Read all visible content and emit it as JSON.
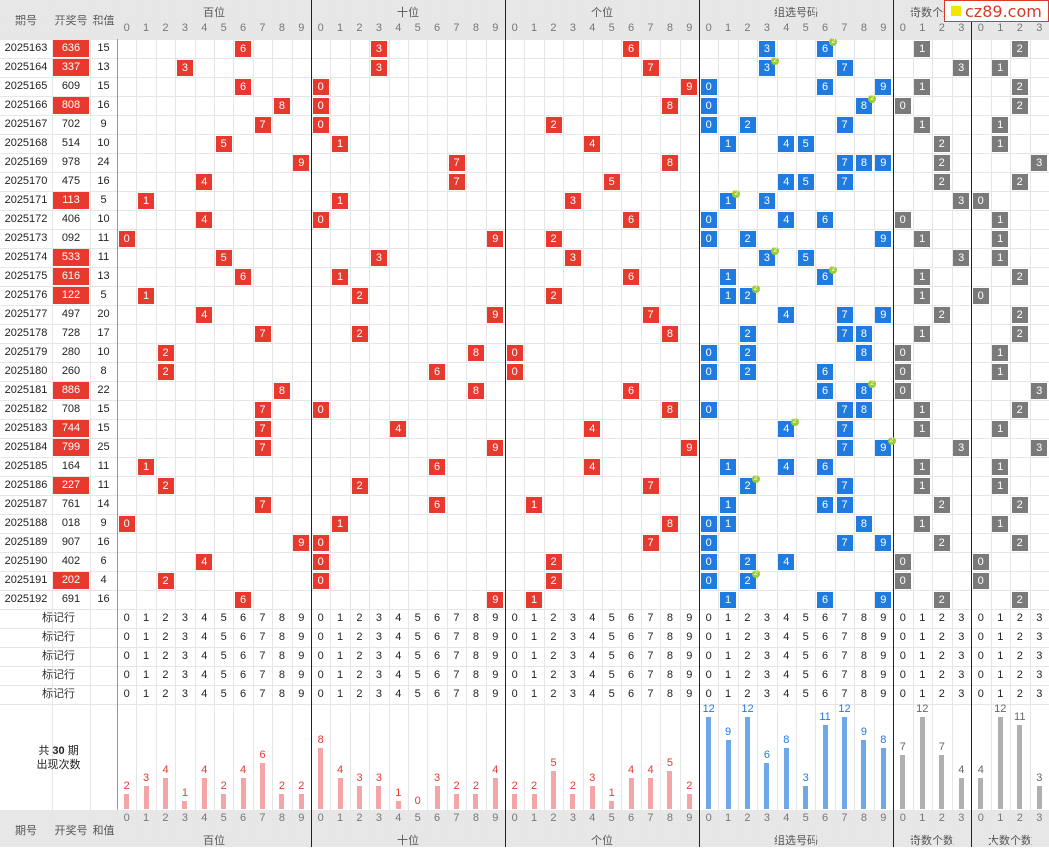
{
  "header": {
    "issue": "期号",
    "number": "开奖号",
    "sum": "和值",
    "groups": [
      "百位",
      "十位",
      "个位",
      "组选号码",
      "奇数个数",
      "大数个数"
    ],
    "logo": "cz89.com"
  },
  "rows": [
    {
      "issue": "2025163",
      "number": "636",
      "sum": "15",
      "tag": "red",
      "g3": [
        3,
        6
      ],
      "g3rep": 6,
      "odd": 1,
      "big": 2
    },
    {
      "issue": "2025164",
      "number": "337",
      "sum": "13",
      "tag": "red",
      "g3": [
        3,
        7
      ],
      "g3rep": 3,
      "odd": 3,
      "big": 1
    },
    {
      "issue": "2025165",
      "number": "609",
      "sum": "15",
      "tag": "",
      "g3": [
        0,
        6,
        9
      ],
      "g3rep": null,
      "odd": 1,
      "big": 2
    },
    {
      "issue": "2025166",
      "number": "808",
      "sum": "16",
      "tag": "red",
      "g3": [
        0,
        8
      ],
      "g3rep": 8,
      "odd": 0,
      "big": 2
    },
    {
      "issue": "2025167",
      "number": "702",
      "sum": "9",
      "tag": "",
      "g3": [
        0,
        2,
        7
      ],
      "g3rep": null,
      "odd": 1,
      "big": 1
    },
    {
      "issue": "2025168",
      "number": "514",
      "sum": "10",
      "tag": "",
      "g3": [
        1,
        4,
        5
      ],
      "g3rep": null,
      "odd": 2,
      "big": 1
    },
    {
      "issue": "2025169",
      "number": "978",
      "sum": "24",
      "tag": "",
      "g3": [
        7,
        8,
        9
      ],
      "g3rep": null,
      "odd": 2,
      "big": 3
    },
    {
      "issue": "2025170",
      "number": "475",
      "sum": "16",
      "tag": "",
      "g3": [
        4,
        5,
        7
      ],
      "g3rep": null,
      "odd": 2,
      "big": 2
    },
    {
      "issue": "2025171",
      "number": "113",
      "sum": "5",
      "tag": "red",
      "g3": [
        1,
        3
      ],
      "g3rep": 1,
      "odd": 3,
      "big": 0
    },
    {
      "issue": "2025172",
      "number": "406",
      "sum": "10",
      "tag": "",
      "g3": [
        0,
        4,
        6
      ],
      "g3rep": null,
      "odd": 0,
      "big": 1
    },
    {
      "issue": "2025173",
      "number": "092",
      "sum": "11",
      "tag": "",
      "g3": [
        0,
        2,
        9
      ],
      "g3rep": null,
      "odd": 1,
      "big": 1
    },
    {
      "issue": "2025174",
      "number": "533",
      "sum": "11",
      "tag": "red",
      "g3": [
        3,
        5
      ],
      "g3rep": 3,
      "odd": 3,
      "big": 1
    },
    {
      "issue": "2025175",
      "number": "616",
      "sum": "13",
      "tag": "red",
      "g3": [
        1,
        6
      ],
      "g3rep": 6,
      "odd": 1,
      "big": 2
    },
    {
      "issue": "2025176",
      "number": "122",
      "sum": "5",
      "tag": "red",
      "g3": [
        1,
        2
      ],
      "g3rep": 2,
      "odd": 1,
      "big": 0
    },
    {
      "issue": "2025177",
      "number": "497",
      "sum": "20",
      "tag": "",
      "g3": [
        4,
        7,
        9
      ],
      "g3rep": null,
      "odd": 2,
      "big": 2
    },
    {
      "issue": "2025178",
      "number": "728",
      "sum": "17",
      "tag": "",
      "g3": [
        2,
        7,
        8
      ],
      "g3rep": null,
      "odd": 1,
      "big": 2
    },
    {
      "issue": "2025179",
      "number": "280",
      "sum": "10",
      "tag": "",
      "g3": [
        0,
        2,
        8
      ],
      "g3rep": null,
      "odd": 0,
      "big": 1
    },
    {
      "issue": "2025180",
      "number": "260",
      "sum": "8",
      "tag": "",
      "g3": [
        0,
        2,
        6
      ],
      "g3rep": null,
      "odd": 0,
      "big": 1
    },
    {
      "issue": "2025181",
      "number": "886",
      "sum": "22",
      "tag": "red",
      "g3": [
        6,
        8
      ],
      "g3rep": 8,
      "odd": 0,
      "big": 3
    },
    {
      "issue": "2025182",
      "number": "708",
      "sum": "15",
      "tag": "",
      "g3": [
        0,
        7,
        8
      ],
      "g3rep": null,
      "odd": 1,
      "big": 2
    },
    {
      "issue": "2025183",
      "number": "744",
      "sum": "15",
      "tag": "red",
      "g3": [
        4,
        7
      ],
      "g3rep": 4,
      "odd": 1,
      "big": 1
    },
    {
      "issue": "2025184",
      "number": "799",
      "sum": "25",
      "tag": "red",
      "g3": [
        7,
        9
      ],
      "g3rep": 9,
      "odd": 3,
      "big": 3
    },
    {
      "issue": "2025185",
      "number": "164",
      "sum": "11",
      "tag": "",
      "g3": [
        1,
        4,
        6
      ],
      "g3rep": null,
      "odd": 1,
      "big": 1
    },
    {
      "issue": "2025186",
      "number": "227",
      "sum": "11",
      "tag": "red",
      "g3": [
        2,
        7
      ],
      "g3rep": 2,
      "odd": 1,
      "big": 1
    },
    {
      "issue": "2025187",
      "number": "761",
      "sum": "14",
      "tag": "",
      "g3": [
        1,
        6,
        7
      ],
      "g3rep": null,
      "odd": 2,
      "big": 2
    },
    {
      "issue": "2025188",
      "number": "018",
      "sum": "9",
      "tag": "",
      "g3": [
        0,
        1,
        8
      ],
      "g3rep": null,
      "odd": 1,
      "big": 1
    },
    {
      "issue": "2025189",
      "number": "907",
      "sum": "16",
      "tag": "",
      "g3": [
        0,
        7,
        9
      ],
      "g3rep": null,
      "odd": 2,
      "big": 2
    },
    {
      "issue": "2025190",
      "number": "402",
      "sum": "6",
      "tag": "",
      "g3": [
        0,
        2,
        4
      ],
      "g3rep": null,
      "odd": 0,
      "big": 0
    },
    {
      "issue": "2025191",
      "number": "202",
      "sum": "4",
      "tag": "red",
      "g3": [
        0,
        2
      ],
      "g3rep": 2,
      "odd": 0,
      "big": 0
    },
    {
      "issue": "2025192",
      "number": "691",
      "sum": "16",
      "tag": "",
      "g3": [
        1,
        6,
        9
      ],
      "g3rep": null,
      "odd": 2,
      "big": 2
    }
  ],
  "marker_rows": [
    "标记行",
    "标记行",
    "标记行",
    "标记行",
    "标记行"
  ],
  "repeat_badge": "2",
  "stats": {
    "label_a": "共",
    "count": "30",
    "label_b": "期",
    "label_c": "出现次数",
    "bai": [
      2,
      3,
      4,
      1,
      4,
      2,
      4,
      6,
      2,
      2
    ],
    "shi": [
      8,
      4,
      3,
      3,
      1,
      0,
      3,
      2,
      2,
      4
    ],
    "ge": [
      2,
      2,
      5,
      2,
      3,
      1,
      4,
      4,
      5,
      2
    ],
    "zuxuan": [
      12,
      9,
      12,
      6,
      8,
      3,
      11,
      12,
      9,
      8
    ],
    "odd": [
      7,
      12,
      7,
      4
    ],
    "big": [
      4,
      12,
      11,
      3
    ]
  },
  "colors": {
    "red": "#e8392f",
    "blue": "#1f7be0",
    "gray": "#7a7a7a",
    "bar_red": "#f4a6a6",
    "bar_blue": "#6fa8e8",
    "bar_gray": "#b0b0b0",
    "label_red": "#e8392f",
    "label_blue": "#1f7be0",
    "badge": "#9acd32"
  }
}
